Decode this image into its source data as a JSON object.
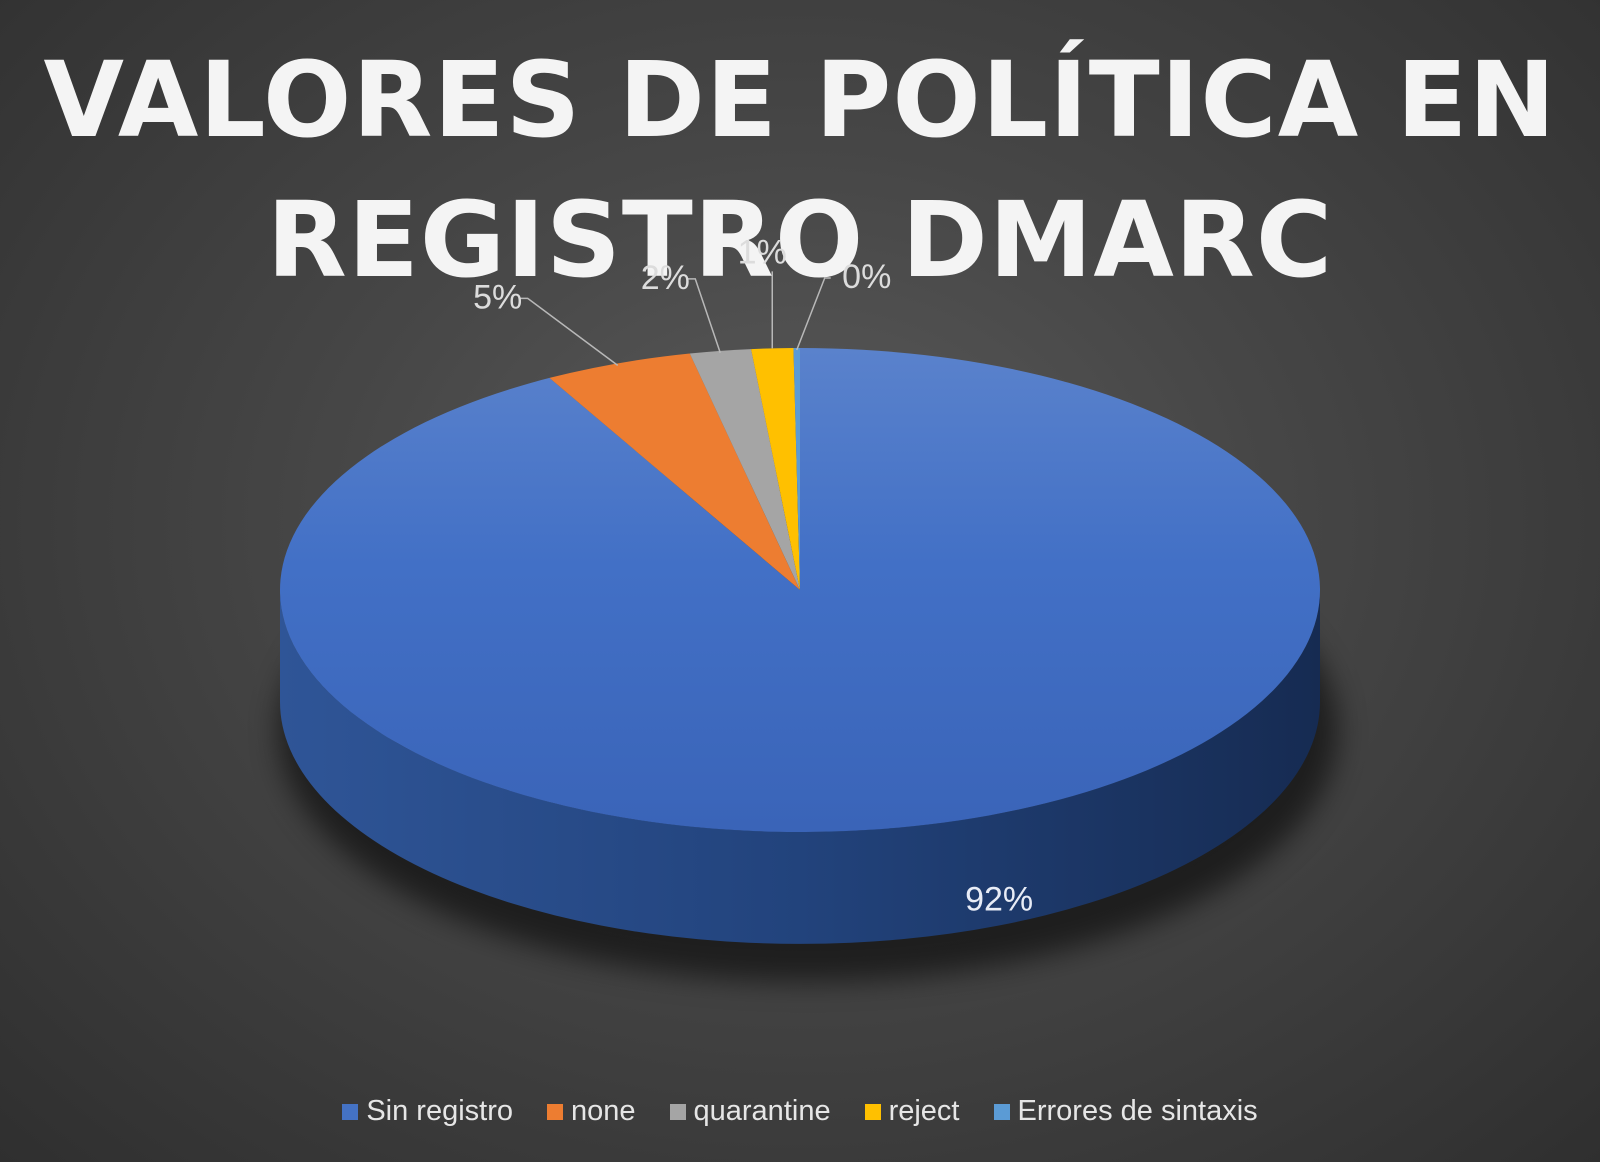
{
  "chart_data": {
    "type": "pie",
    "three_d": true,
    "title_lines": [
      "VALORES DE POLÍTICA EN",
      "REGISTRO DMARC"
    ],
    "legend_position": "bottom",
    "start_angle_note": "first slice starts at 12 o'clock, clockwise",
    "slices": [
      {
        "label": "Sin registro",
        "value": 92,
        "display": "92%",
        "color": "#4472c4"
      },
      {
        "label": "none",
        "value": 4.6,
        "display": "5%",
        "color": "#ed7d31"
      },
      {
        "label": "quarantine",
        "value": 1.9,
        "display": "2%",
        "color": "#a5a5a5"
      },
      {
        "label": "reject",
        "value": 1.3,
        "display": "1%",
        "color": "#ffc000"
      },
      {
        "label": "Errores de sintaxis",
        "value": 0.2,
        "display": "0%",
        "color": "#5b9bd5"
      }
    ]
  }
}
